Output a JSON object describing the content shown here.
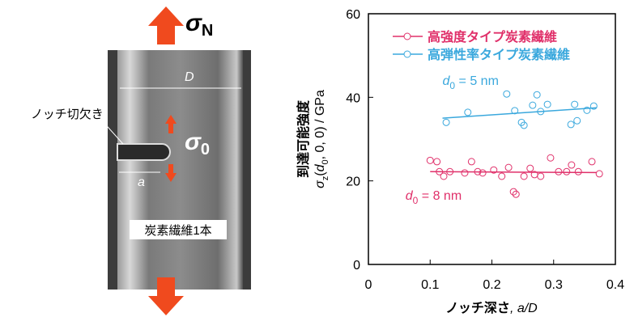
{
  "image_labels": {
    "sigma_n": {
      "symbol": "σ",
      "subscript": "N"
    },
    "sigma_0": {
      "symbol": "σ",
      "subscript": "0"
    },
    "d_label": "D",
    "a_label": "a",
    "notch_label": "ノッチ切欠き",
    "fiber_label": "炭素繊維1本"
  },
  "chart_data": {
    "type": "scatter",
    "x_label": [
      "ノッチ深さ",
      ", a/D"
    ],
    "y_label": {
      "line1": "到達可能強度",
      "line2": [
        "σ",
        "z",
        "(",
        "d",
        "0",
        ", 0, 0) / GPa"
      ]
    },
    "xlim": [
      0,
      0.4
    ],
    "xticks": [
      0,
      0.1,
      0.2,
      0.3,
      0.4
    ],
    "ylim": [
      0,
      60
    ],
    "yticks": [
      0,
      20,
      40,
      60
    ],
    "series": [
      {
        "name": "高強度タイプ炭素繊維",
        "color": "#e0306a",
        "x": [
          0.1,
          0.111,
          0.115,
          0.122,
          0.132,
          0.156,
          0.167,
          0.177,
          0.185,
          0.203,
          0.216,
          0.227,
          0.235,
          0.239,
          0.252,
          0.262,
          0.269,
          0.279,
          0.295,
          0.308,
          0.321,
          0.329,
          0.34,
          0.362,
          0.374
        ],
        "values": [
          24.9,
          24.6,
          22.2,
          21.1,
          22.2,
          21.9,
          24.6,
          22.2,
          21.9,
          22.6,
          21.1,
          23.2,
          17.4,
          16.8,
          21.1,
          23.0,
          21.5,
          21.1,
          25.5,
          22.2,
          22.2,
          23.8,
          22.2,
          24.6,
          21.7
        ],
        "fit": {
          "x": [
            0.1,
            0.37
          ],
          "values": [
            22.2,
            22.0
          ]
        }
      },
      {
        "name": "高弾性率タイプ炭素繊維",
        "color": "#3aa8dd",
        "x": [
          0.126,
          0.161,
          0.224,
          0.237,
          0.248,
          0.252,
          0.266,
          0.273,
          0.279,
          0.29,
          0.328,
          0.334,
          0.338,
          0.354,
          0.365
        ],
        "values": [
          34.0,
          36.4,
          40.8,
          36.8,
          34.0,
          33.3,
          38.1,
          40.6,
          36.6,
          38.3,
          33.5,
          38.3,
          34.4,
          36.9,
          37.9
        ],
        "fit": {
          "x": [
            0.12,
            0.37
          ],
          "values": [
            35.0,
            37.5
          ]
        }
      }
    ],
    "annotations": [
      {
        "symbol": "d",
        "subscript": "0",
        "text": " = 5 nm",
        "color": "#3aa8dd",
        "x": 0.12,
        "y": 43
      },
      {
        "symbol": "d",
        "subscript": "0",
        "text": " = 8 nm",
        "color": "#e0306a",
        "x": 0.06,
        "y": 15.5
      }
    ]
  }
}
